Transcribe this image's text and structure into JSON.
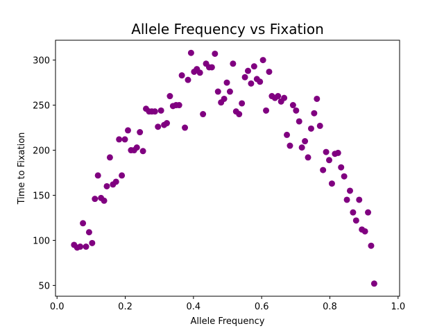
{
  "chart_data": {
    "type": "scatter",
    "title": "Allele Frequency vs Fixation",
    "xlabel": "Allele Frequency",
    "ylabel": "Time to Fixation",
    "xlim": [
      -0.0045,
      1.0045
    ],
    "ylim": [
      38,
      322
    ],
    "xticks": [
      0.0,
      0.2,
      0.4,
      0.6,
      0.8,
      1.0
    ],
    "xtick_labels": [
      "0.0",
      "0.2",
      "0.4",
      "0.6",
      "0.8",
      "1.0"
    ],
    "yticks": [
      50,
      100,
      150,
      200,
      250,
      300
    ],
    "ytick_labels": [
      "50",
      "100",
      "150",
      "200",
      "250",
      "300"
    ],
    "grid": false,
    "marker_color": "#800080",
    "series": [
      {
        "points": [
          [
            0.05,
            95
          ],
          [
            0.059,
            92
          ],
          [
            0.068,
            93
          ],
          [
            0.076,
            119
          ],
          [
            0.085,
            93
          ],
          [
            0.094,
            109
          ],
          [
            0.103,
            97
          ],
          [
            0.111,
            146
          ],
          [
            0.12,
            172
          ],
          [
            0.129,
            147
          ],
          [
            0.138,
            144
          ],
          [
            0.146,
            160
          ],
          [
            0.155,
            192
          ],
          [
            0.164,
            162
          ],
          [
            0.173,
            165
          ],
          [
            0.182,
            212
          ],
          [
            0.19,
            172
          ],
          [
            0.199,
            212
          ],
          [
            0.208,
            222
          ],
          [
            0.217,
            200
          ],
          [
            0.226,
            200
          ],
          [
            0.234,
            203
          ],
          [
            0.243,
            220
          ],
          [
            0.252,
            199
          ],
          [
            0.261,
            246
          ],
          [
            0.27,
            243
          ],
          [
            0.278,
            243
          ],
          [
            0.287,
            243
          ],
          [
            0.296,
            226
          ],
          [
            0.305,
            244
          ],
          [
            0.314,
            228
          ],
          [
            0.322,
            230
          ],
          [
            0.331,
            260
          ],
          [
            0.34,
            249
          ],
          [
            0.349,
            250
          ],
          [
            0.358,
            250
          ],
          [
            0.366,
            283
          ],
          [
            0.375,
            225
          ],
          [
            0.384,
            278
          ],
          [
            0.393,
            308
          ],
          [
            0.402,
            287
          ],
          [
            0.41,
            290
          ],
          [
            0.419,
            286
          ],
          [
            0.428,
            240
          ],
          [
            0.437,
            296
          ],
          [
            0.446,
            292
          ],
          [
            0.454,
            292
          ],
          [
            0.463,
            307
          ],
          [
            0.472,
            265
          ],
          [
            0.481,
            253
          ],
          [
            0.49,
            257
          ],
          [
            0.498,
            275
          ],
          [
            0.507,
            265
          ],
          [
            0.516,
            296
          ],
          [
            0.525,
            243
          ],
          [
            0.534,
            240
          ],
          [
            0.542,
            252
          ],
          [
            0.551,
            281
          ],
          [
            0.56,
            288
          ],
          [
            0.569,
            274
          ],
          [
            0.578,
            293
          ],
          [
            0.586,
            279
          ],
          [
            0.595,
            276
          ],
          [
            0.604,
            300
          ],
          [
            0.613,
            244
          ],
          [
            0.622,
            287
          ],
          [
            0.63,
            260
          ],
          [
            0.639,
            258
          ],
          [
            0.648,
            260
          ],
          [
            0.657,
            254
          ],
          [
            0.666,
            258
          ],
          [
            0.674,
            217
          ],
          [
            0.683,
            205
          ],
          [
            0.692,
            250
          ],
          [
            0.701,
            244
          ],
          [
            0.71,
            232
          ],
          [
            0.718,
            203
          ],
          [
            0.727,
            210
          ],
          [
            0.736,
            192
          ],
          [
            0.745,
            224
          ],
          [
            0.754,
            241
          ],
          [
            0.762,
            257
          ],
          [
            0.771,
            227
          ],
          [
            0.78,
            178
          ],
          [
            0.789,
            198
          ],
          [
            0.798,
            189
          ],
          [
            0.806,
            163
          ],
          [
            0.815,
            196
          ],
          [
            0.824,
            197
          ],
          [
            0.833,
            181
          ],
          [
            0.842,
            171
          ],
          [
            0.85,
            145
          ],
          [
            0.859,
            155
          ],
          [
            0.868,
            131
          ],
          [
            0.877,
            122
          ],
          [
            0.886,
            145
          ],
          [
            0.894,
            112
          ],
          [
            0.903,
            110
          ],
          [
            0.912,
            131
          ],
          [
            0.921,
            94
          ],
          [
            0.93,
            52
          ]
        ]
      }
    ]
  }
}
